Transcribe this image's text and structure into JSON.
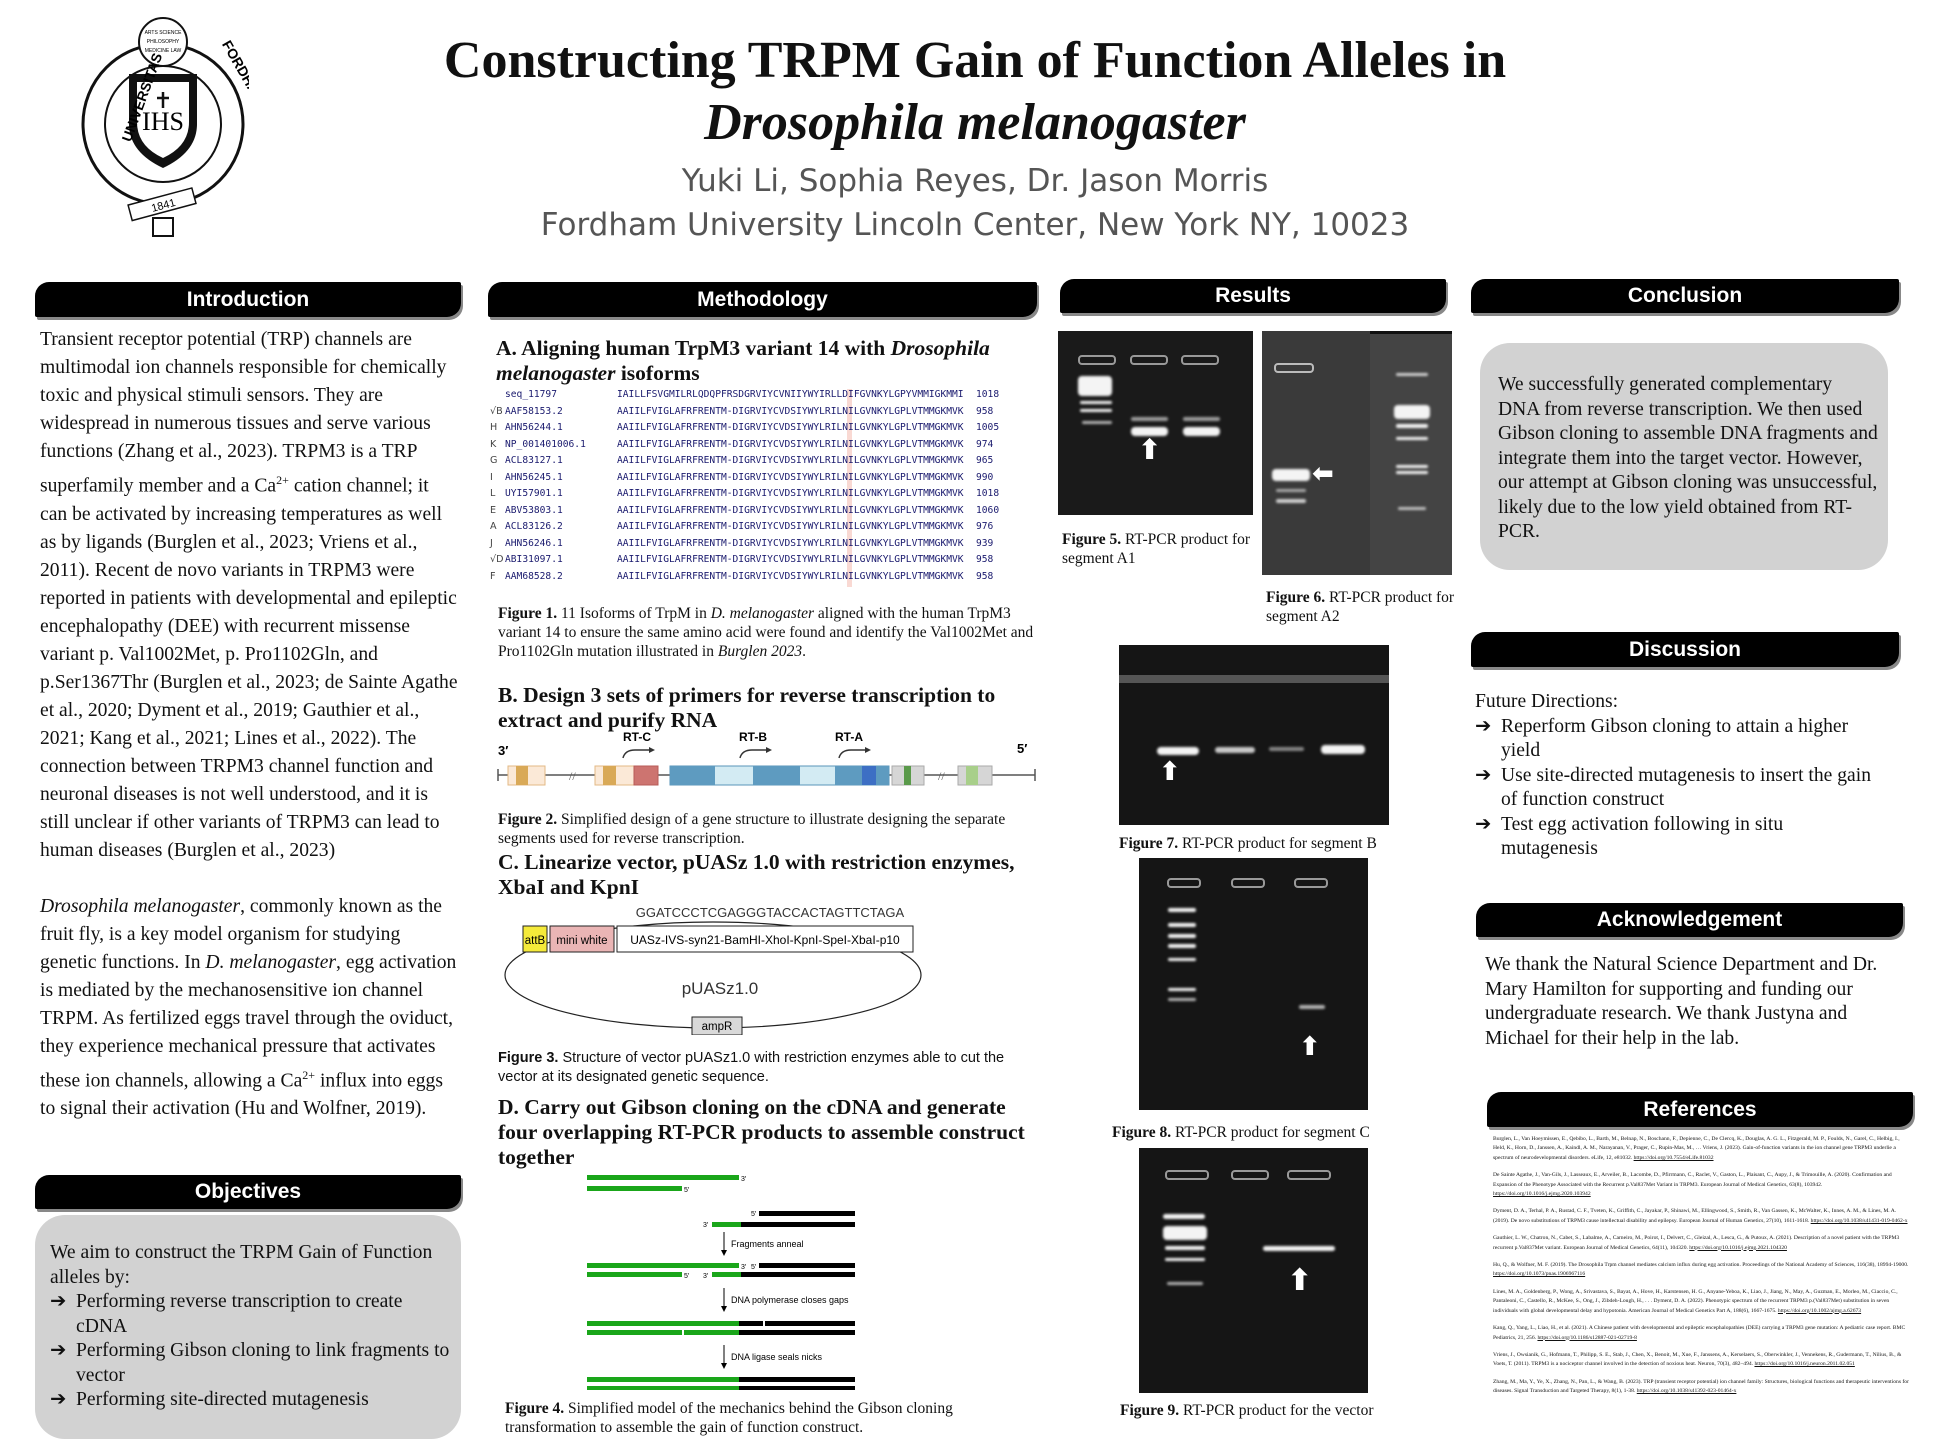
{
  "header": {
    "title_line1": "Constructing TRPM Gain of Function Alleles in",
    "title_line2": "Drosophila melanogaster",
    "authors": "Yuki Li, Sophia Reyes, Dr. Jason Morris",
    "affiliation": "Fordham University Lincoln Center, New York NY, 10023",
    "logo_text": [
      "UNIVERSITAS",
      "FORDHAMENSIS",
      "ARTS SCIENCE PHILOSOPHY MEDICINE LAW",
      "IHS",
      "SAPIENTIA ET DOCTRINA",
      "1841"
    ]
  },
  "introduction": {
    "heading": "Introduction",
    "p1a": "Transient receptor potential (TRP) channels are multimodal ion channels responsible for chemically toxic and physical stimuli sensors. They are widespread in numerous tissues and serve various functions (Zhang et al., 2023). TRPM3 is a TRP superfamily member and a Ca",
    "p1sup": "2+",
    "p1b": " cation channel; it can be activated by increasing temperatures as well as by ligands (Burglen et al., 2023; Vriens et al., 2011). Recent de novo variants in TRPM3 were reported in patients with developmental and epileptic encephalopathy (DEE) with recurrent missense variant p. Val1002Met, p. Pro1102Gln, and p.Ser1367Thr (Burglen et al., 2023; de Sainte Agathe et al., 2020; Dyment et al., 2019; Gauthier et al., 2021; Kang et al., 2021; Lines et al., 2022). The connection between TRPM3 channel function and neuronal diseases is not well understood, and it is still unclear if other variants of TRPM3 can lead to human diseases (Burglen et al., 2023)",
    "p2_italic1": "Drosophila melanogaster",
    "p2a": ", commonly known as the fruit fly, is a key model organism for studying genetic functions. In ",
    "p2_italic2": "D. melanogaster",
    "p2b": ", egg activation is mediated by the mechanosensitive ion channel TRPM. As fertilized eggs travel through the oviduct, they experience mechanical pressure that activates these ion channels, allowing a Ca",
    "p2sup": "2+",
    "p2c": " influx into eggs to signal their activation (Hu and Wolfner, 2019)."
  },
  "objectives": {
    "heading": "Objectives",
    "intro": "We aim to construct the TRPM Gain of Function alleles by:",
    "bullet_icon": "➔",
    "items": [
      "Performing  reverse transcription to create cDNA",
      "Performing Gibson cloning to link fragments to vector",
      "Performing site-directed mutagenesis"
    ]
  },
  "methodology": {
    "heading": "Methodology",
    "a_heading_1": "A. Aligning human TrpM3 variant 14 with ",
    "a_heading_italic": "Drosophila melanogaster",
    "a_heading_2": " isoforms",
    "alignment": [
      {
        "mark": "",
        "id": "seq_11797",
        "seq": "IAILLFSVGMILRLQDQPFRSDGRVIYCVNIIYWYIRLLDIFGVNKYLGPYVMMIGKMMI",
        "end": "1018"
      },
      {
        "mark": "√B",
        "id": "AAF58153.2",
        "seq": "AAIILFVIGLAFRFRENTM-DIGRVIYCVDSIYWYLRILNILGVNKYLGPLVTMMGKMVK",
        "end": "958"
      },
      {
        "mark": "H",
        "id": "AHN56244.1",
        "seq": "AAIILFVIGLAFRFRENTM-DIGRVIYCVDSIYWYLRILNILGVNKYLGPLVTMMGKMVK",
        "end": "1005"
      },
      {
        "mark": "K",
        "id": "NP_001401006.1",
        "seq": "AAIILFVIGLAFRFRENTM-DIGRVIYCVDSIYWYLRILNILGVNKYLGPLVTMMGKMVK",
        "end": "974"
      },
      {
        "mark": "G",
        "id": "ACL83127.1",
        "seq": "AAIILFVIGLAFRFRENTM-DIGRVIYCVDSIYWYLRILNILGVNKYLGPLVTMMGKMVK",
        "end": "965"
      },
      {
        "mark": "I",
        "id": "AHN56245.1",
        "seq": "AAIILFVIGLAFRFRENTM-DIGRVIYCVDSIYWYLRILNILGVNKYLGPLVTMMGKMVK",
        "end": "990"
      },
      {
        "mark": "L",
        "id": "UYI57901.1",
        "seq": "AAIILFVIGLAFRFRENTM-DIGRVIYCVDSIYWYLRILNILGVNKYLGPLVTMMGKMVK",
        "end": "1018"
      },
      {
        "mark": "E",
        "id": "ABV53803.1",
        "seq": "AAIILFVIGLAFRFRENTM-DIGRVIYCVDSIYWYLRILNILGVNKYLGPLVTMMGKMVK",
        "end": "1060"
      },
      {
        "mark": "A",
        "id": "ACL83126.2",
        "seq": "AAIILFVIGLAFRFRENTM-DIGRVIYCVDSIYWYLRILNILGVNKYLGPLVTMMGKMVK",
        "end": "976"
      },
      {
        "mark": "J",
        "id": "AHN56246.1",
        "seq": "AAIILFVIGLAFRFRENTM-DIGRVIYCVDSIYWYLRILNILGVNKYLGPLVTMMGKMVK",
        "end": "939"
      },
      {
        "mark": "√D",
        "id": "ABI31097.1",
        "seq": "AAIILFVIGLAFRFRENTM-DIGRVIYCVDSIYWYLRILNILGVNKYLGPLVTMMGKMVK",
        "end": "958"
      },
      {
        "mark": "F",
        "id": "AAM68528.2",
        "seq": "AAIILFVIGLAFRFRENTM-DIGRVIYCVDSIYWYLRILNILGVNKYLGPLVTMMGKMVK",
        "end": "958"
      }
    ],
    "fig1_label": "Figure 1.",
    "fig1_text_a": " 11 Isoforms of TrpM in ",
    "fig1_italic": "D. melanogaster",
    "fig1_text_b": " aligned with the human TrpM3 variant 14 to ensure the same amino acid were found and identify the Val1002Met and Pro1102Gln mutation illustrated in ",
    "fig1_italic2": "Burglen 2023",
    "fig1_text_c": ".",
    "b_heading": "B. Design 3 sets of primers for reverse transcription to extract and purify RNA",
    "gene": {
      "end_left": "3′",
      "end_right": "5′",
      "primers": [
        "RT-C",
        "RT-B",
        "RT-A"
      ]
    },
    "fig2_label": "Figure 2.",
    "fig2_text": " Simplified design of a gene structure to illustrate designing the separate segments used for reverse transcription.",
    "c_heading": "C. Linearize vector, pUASz 1.0 with restriction enzymes, XbaI and KpnI",
    "vector": {
      "sequence": "GGATCCCTCGAGGGTACCACTAGTTCTAGA",
      "attb": "attB",
      "mini_white": "mini white",
      "insert": "UASz-IVS-syn21-BamHI-XhoI-KpnI-SpeI-XbaI-p10",
      "name": "pUASz1.0",
      "ampr": "ampR",
      "colors": {
        "attb": "#f5ea3a",
        "mini_white": "#eab5b5",
        "ampr": "#d9d9d9"
      }
    },
    "fig3_label": "Figure 3.",
    "fig3_text": " Structure of vector pUASz1.0 with restriction enzymes able to cut the vector at its designated genetic sequence.",
    "d_heading": "D. Carry out Gibson cloning on the cDNA and generate four overlapping RT-PCR products to assemble construct together",
    "gibson": {
      "step1": "Fragments anneal",
      "step2": "DNA polymerase closes gaps",
      "step3": "DNA ligase seals nicks",
      "three_prime": "3′",
      "five_prime": "5′",
      "colors": {
        "fragment_a": "#1aa61a",
        "fragment_b": "#000000"
      }
    },
    "fig4_label": "Figure 4.",
    "fig4_text": " Simplified model of the mechanics behind the Gibson cloning transformation  to assemble the gain of function construct."
  },
  "results": {
    "heading": "Results",
    "fig5_label": "Figure 5.",
    "fig5_text": " RT-PCR product for segment A1",
    "fig6_label": "Figure 6.",
    "fig6_text": " RT-PCR product for segment A2",
    "fig7_label": "Figure 7.",
    "fig7_text": " RT-PCR product for segment B",
    "fig8_label": "Figure 8.",
    "fig8_text": " RT-PCR product for segment C",
    "fig9_label": "Figure 9.",
    "fig9_text": " RT-PCR product for the vector"
  },
  "conclusion": {
    "heading": "Conclusion",
    "text": "We successfully generated complementary DNA from reverse transcription. We then used Gibson cloning to assemble DNA fragments and integrate them into the target vector. However, our attempt at Gibson cloning was unsuccessful, likely due to the low yield obtained from RT-PCR."
  },
  "discussion": {
    "heading": "Discussion",
    "intro": "Future Directions:",
    "bullet_icon": "➔",
    "items": [
      "Reperform Gibson cloning to attain a higher yield",
      "Use site-directed mutagenesis to insert the gain of function construct",
      "Test egg activation following in situ mutagenesis"
    ]
  },
  "acknowledgement": {
    "heading": "Acknowledgement",
    "text": "We thank the Natural Science Department and Dr. Mary Hamilton for supporting and funding our undergraduate research. We thank Justyna and Michael for their help in the lab."
  },
  "references": {
    "heading": "References",
    "items": [
      {
        "text": "Burglen, L., Van Hoeymissen, E., Qebibo, L., Barth, M., Belnap, N., Boschann, F., Depienne, C., De Clercq, K., Douglas, A. G. L., Fitzgerald, M. P., Foulds, N., Garel, C., Helbig, I., Held, K., Horn, D., Janssen, A., Kaindl, A. M., Narayanan, V., Prager, C., Rupin-Mas, M., … Vriens, J. (2023). Gain-of-function variants in the ion channel gene TRPM3 underlie a spectrum of neurodevelopmental disorders. eLife, 12, e81032.",
        "doi": "https://doi.org/10.7554/eLife.81032"
      },
      {
        "text": "De Sainte Agathe, J., Van-Gils, J., Lasseaux, E., Arveiler, B., Lacombe, D., Pfirrmann, C., Raclet, V., Gaston, L., Plaisant, C., Aupy, J., & Trimouille, A. (2020). Confirmation and Expansion of the Phenotype Associated with the Recurrent p.Val837Met Variant in TRPM3. European Journal of Medical Genetics, 63(8), 103942.",
        "doi": "https://doi.org/10.1016/j.ejmg.2020.103942"
      },
      {
        "text": "Dyment, D. A., Terhal, P. A., Rustad, C. F., Tveten, K., Griffith, C., Jayakar, P., Shinawi, M., Ellingwood, S., Smith, R., Van Gassen, K., McWalter, K., Innes, A. M., & Lines, M. A. (2019). De novo substitutions of TRPM3 cause intellectual disability and epilepsy. European Journal of Human Genetics, 27(10), 1611-1618.",
        "doi": "https://doi.org/10.1038/s41431-019-0462-x"
      },
      {
        "text": "Gauthier, L. W., Chatron, N., Cabet, S., Labalme, A., Carneiro, M., Poirot, I., Delvert, C., Gleizal, A., Lesca, G., & Putoux, A. (2021). Description of a novel patient with the TRPM3 recurrent p.Val837Met variant. European Journal of Medical Genetics, 64(11), 104320.",
        "doi": "https://doi.org/10.1016/j.ejmg.2021.104320"
      },
      {
        "text": "Hu, Q., & Wolfner, M. F. (2019). The Drosophila Trpm channel mediates calcium influx during egg activation. Proceedings of the National Academy of Sciences, 116(38), 18994-19000.",
        "doi": "https://doi.org/10.1073/pnas.1906967116"
      },
      {
        "text": "Lines, M. A., Goldenberg, P., Wong, A., Srivastava, S., Bayat, A., Hove, H., Karstensen, H. G., Anyane-Yeboa, K., Liao, J., Jiang, N., May, A., Guzman, E., Morleo, M., Ciaccio, C., Pantaleoni, C., Castello, R., McKee, S., Ong, J., Zibdeh-Lough, H., . . . Dyment, D. A. (2022). Phenotypic spectrum of the recurrent TRPM3 p.(Val837Met) substitution in seven individuals with global developmental delay and hypotonia. American Journal of Medical Genetics Part A, 188(6), 1667-1675.",
        "doi": "https://doi.org/10.1002/ajmg.a.62673"
      },
      {
        "text": "Kang, Q., Yang, L., Liao, H., et al. (2021). A Chinese patient with developmental and epileptic encephalopathies (DEE) carrying a TRPM3 gene mutation: A pediatric case report. BMC Pediatrics, 21, 256.",
        "doi": "https://doi.org/10.1186/s12887-021-02719-8"
      },
      {
        "text": "Vriens, J., Owsianik, G., Hofmann, T., Philipp, S. E., Stab, J., Chen, X., Benoit, M., Xue, F., Janssens, A., Kerselaers, S., Oberwinkler, J., Vennekens, R., Gudermann, T., Nilius, B., & Voets, T. (2011). TRPM3 is a nociceptor channel involved in the detection of noxious heat. Neuron, 70(3), 482–494.",
        "doi": "https://doi.org/10.1016/j.neuron.2011.02.051"
      },
      {
        "text": "Zhang, M., Ma, Y., Ye, X., Zhang, N., Pan, L., & Wang, B. (2023). TRP (transient receptor potential) ion channel family: Structures, biological functions and therapeutic interventions for diseases. Signal Transduction and Targeted Therapy, 8(1), 1-38.",
        "doi": "https://doi.org/10.1038/s41392-023-01464-x"
      }
    ]
  }
}
